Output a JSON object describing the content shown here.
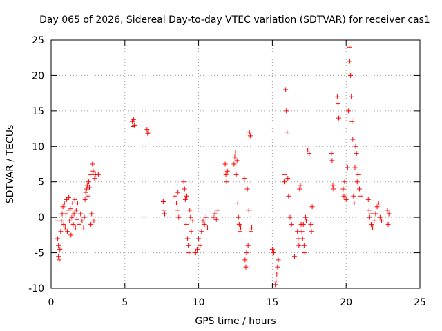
{
  "chart_data": {
    "type": "scatter",
    "title": "Day 065 of 2026, Sidereal Day-to-day VTEC variation (SDTVAR) for receiver cas1",
    "xlabel": "GPS time / hours",
    "ylabel": "SDTVAR / TECUs",
    "xlim": [
      0,
      25
    ],
    "ylim": [
      -10,
      25
    ],
    "x_ticks": [
      0,
      5,
      10,
      15,
      20,
      25
    ],
    "y_ticks": [
      -10,
      -5,
      0,
      5,
      10,
      15,
      20,
      25
    ],
    "x_tick_labels": [
      "0",
      "5",
      "10",
      "15",
      "20",
      "25"
    ],
    "y_tick_labels": [
      "-10",
      "-5",
      "0",
      "5",
      "10",
      "15",
      "20",
      "25"
    ],
    "grid": true,
    "marker": "+",
    "series": [
      {
        "name": "SDTVAR",
        "color": "#ff0000",
        "points": [
          [
            0.4,
            -0.5
          ],
          [
            0.45,
            -3
          ],
          [
            0.5,
            -4
          ],
          [
            0.5,
            -5.5
          ],
          [
            0.55,
            -6
          ],
          [
            0.6,
            -4.5
          ],
          [
            0.65,
            -2
          ],
          [
            0.7,
            -0.5
          ],
          [
            0.75,
            0.5
          ],
          [
            0.8,
            1.5
          ],
          [
            0.85,
            -1
          ],
          [
            0.9,
            2
          ],
          [
            0.95,
            -1.5
          ],
          [
            1.0,
            0.5
          ],
          [
            1.05,
            2.5
          ],
          [
            1.1,
            -2
          ],
          [
            1.15,
            1
          ],
          [
            1.2,
            2.8
          ],
          [
            1.25,
            -0.5
          ],
          [
            1.3,
            1.2
          ],
          [
            1.35,
            -2.5
          ],
          [
            1.4,
            0
          ],
          [
            1.45,
            2
          ],
          [
            1.5,
            -1
          ],
          [
            1.55,
            0.5
          ],
          [
            1.6,
            2.5
          ],
          [
            1.65,
            -1.5
          ],
          [
            1.7,
            1
          ],
          [
            1.75,
            -0.3
          ],
          [
            1.8,
            2
          ],
          [
            1.9,
            -1
          ],
          [
            2.0,
            0.5
          ],
          [
            2.1,
            -0.5
          ],
          [
            2.2,
            -1.5
          ],
          [
            2.25,
            0
          ],
          [
            2.3,
            2.5
          ],
          [
            2.35,
            3.5
          ],
          [
            2.4,
            4
          ],
          [
            2.45,
            4.5
          ],
          [
            2.5,
            3
          ],
          [
            2.55,
            5
          ],
          [
            2.6,
            4.2
          ],
          [
            2.65,
            6
          ],
          [
            2.7,
            -1
          ],
          [
            2.75,
            0.5
          ],
          [
            2.8,
            7.5
          ],
          [
            2.85,
            6.5
          ],
          [
            2.9,
            -0.5
          ],
          [
            2.95,
            5.5
          ],
          [
            3.0,
            6
          ],
          [
            3.2,
            6
          ],
          [
            5.5,
            13.5
          ],
          [
            5.55,
            12.8
          ],
          [
            5.6,
            13.8
          ],
          [
            5.65,
            13
          ],
          [
            6.5,
            12.4
          ],
          [
            6.55,
            11.8
          ],
          [
            6.6,
            12
          ],
          [
            7.6,
            2.2
          ],
          [
            7.65,
            1
          ],
          [
            7.7,
            0.5
          ],
          [
            8.4,
            3
          ],
          [
            8.5,
            2
          ],
          [
            8.55,
            1
          ],
          [
            8.6,
            3.5
          ],
          [
            8.65,
            0
          ],
          [
            9.0,
            5
          ],
          [
            9.05,
            4
          ],
          [
            9.1,
            2.5
          ],
          [
            9.15,
            -1
          ],
          [
            9.2,
            3
          ],
          [
            9.25,
            -3
          ],
          [
            9.3,
            -4
          ],
          [
            9.35,
            -5
          ],
          [
            9.4,
            1
          ],
          [
            9.45,
            0
          ],
          [
            9.5,
            -2
          ],
          [
            9.6,
            -0.5
          ],
          [
            9.8,
            -5
          ],
          [
            9.9,
            -4.5
          ],
          [
            10.0,
            -3
          ],
          [
            10.1,
            -4
          ],
          [
            10.2,
            -2
          ],
          [
            10.3,
            -0.5
          ],
          [
            10.4,
            -1
          ],
          [
            10.5,
            0
          ],
          [
            10.6,
            -1.5
          ],
          [
            11.0,
            0
          ],
          [
            11.1,
            0.5
          ],
          [
            11.2,
            -0.3
          ],
          [
            11.3,
            1
          ],
          [
            11.8,
            7.5
          ],
          [
            11.85,
            6
          ],
          [
            11.9,
            5
          ],
          [
            11.95,
            6.5
          ],
          [
            12.4,
            7.5
          ],
          [
            12.45,
            8.5
          ],
          [
            12.5,
            9.2
          ],
          [
            12.55,
            6
          ],
          [
            12.6,
            8
          ],
          [
            12.65,
            2
          ],
          [
            12.7,
            0
          ],
          [
            12.75,
            -1
          ],
          [
            12.8,
            -2
          ],
          [
            12.85,
            -1.5
          ],
          [
            13.1,
            5.5
          ],
          [
            13.15,
            -6
          ],
          [
            13.2,
            -7
          ],
          [
            13.25,
            -5
          ],
          [
            13.3,
            4
          ],
          [
            13.35,
            -4
          ],
          [
            13.4,
            1
          ],
          [
            13.45,
            12
          ],
          [
            13.5,
            11.5
          ],
          [
            13.55,
            -2
          ],
          [
            13.6,
            -1.5
          ],
          [
            15.0,
            -4.5
          ],
          [
            15.1,
            -5
          ],
          [
            15.2,
            -9.5
          ],
          [
            15.25,
            -9
          ],
          [
            15.3,
            -8
          ],
          [
            15.35,
            -7
          ],
          [
            15.4,
            -6
          ],
          [
            15.8,
            5
          ],
          [
            15.85,
            6
          ],
          [
            15.9,
            18
          ],
          [
            15.95,
            15
          ],
          [
            16.0,
            12
          ],
          [
            16.05,
            5.5
          ],
          [
            16.1,
            3
          ],
          [
            16.2,
            0
          ],
          [
            16.3,
            -1
          ],
          [
            16.5,
            -5.5
          ],
          [
            16.7,
            -2
          ],
          [
            16.75,
            -3
          ],
          [
            16.8,
            -4
          ],
          [
            16.85,
            4
          ],
          [
            16.9,
            4.5
          ],
          [
            16.95,
            -1
          ],
          [
            17.0,
            -2
          ],
          [
            17.05,
            -3
          ],
          [
            17.1,
            -1
          ],
          [
            17.15,
            -4
          ],
          [
            17.2,
            -5
          ],
          [
            17.25,
            0
          ],
          [
            17.3,
            -0.5
          ],
          [
            17.4,
            9.5
          ],
          [
            17.5,
            9
          ],
          [
            17.6,
            -1
          ],
          [
            17.65,
            -2
          ],
          [
            17.7,
            1.5
          ],
          [
            19.0,
            9
          ],
          [
            19.05,
            8
          ],
          [
            19.1,
            4.5
          ],
          [
            19.15,
            4
          ],
          [
            19.4,
            17
          ],
          [
            19.45,
            16
          ],
          [
            19.5,
            14
          ],
          [
            19.8,
            4
          ],
          [
            19.85,
            3
          ],
          [
            19.9,
            5
          ],
          [
            20.0,
            2.5
          ],
          [
            20.1,
            7
          ],
          [
            20.15,
            15
          ],
          [
            20.2,
            24
          ],
          [
            20.25,
            22
          ],
          [
            20.3,
            20
          ],
          [
            20.35,
            17
          ],
          [
            20.4,
            13.5
          ],
          [
            20.45,
            11
          ],
          [
            20.5,
            3
          ],
          [
            20.55,
            2
          ],
          [
            20.6,
            7
          ],
          [
            20.65,
            10
          ],
          [
            20.7,
            9
          ],
          [
            20.75,
            5
          ],
          [
            20.8,
            6
          ],
          [
            20.9,
            4
          ],
          [
            21.0,
            3
          ],
          [
            21.5,
            2.5
          ],
          [
            21.55,
            1
          ],
          [
            21.6,
            0
          ],
          [
            21.7,
            -1
          ],
          [
            21.75,
            0.5
          ],
          [
            21.8,
            -1.5
          ],
          [
            21.9,
            -0.5
          ],
          [
            22.0,
            0.5
          ],
          [
            22.1,
            1.5
          ],
          [
            22.2,
            2
          ],
          [
            22.3,
            0
          ],
          [
            22.4,
            -0.5
          ],
          [
            22.8,
            1
          ],
          [
            22.85,
            -1
          ],
          [
            22.9,
            0.5
          ]
        ]
      }
    ]
  }
}
